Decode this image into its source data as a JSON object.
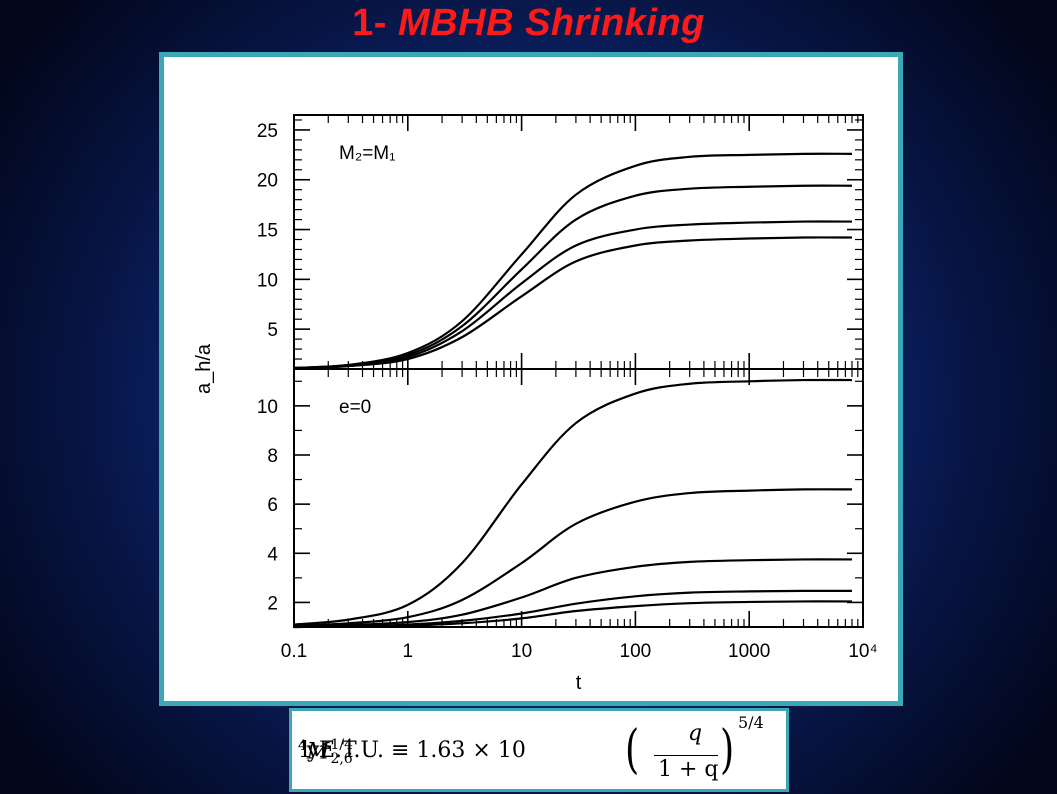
{
  "slide": {
    "title_num": "1- ",
    "title_text": "MBHB Shrinking"
  },
  "formula": {
    "lhs": "1 E.T.U. ≡ 1.63 × 10",
    "ten_exp": "4",
    "yr": " yr ",
    "mass": "M",
    "mass_sup": "1/4",
    "mass_sub": "2,6",
    "numerator": "q",
    "denominator": "1 + q",
    "outer_exponent": "5/4"
  },
  "colors": {
    "title": "#ff1a1a",
    "frame_border": "#3ea7b6",
    "curve": "#000000"
  },
  "chart_data": {
    "type": "line",
    "shared_x": {
      "label": "t",
      "scale": "log",
      "range": [
        0.1,
        10000
      ],
      "ticks": [
        0.1,
        1,
        10,
        100,
        1000,
        10000
      ],
      "tick_labels": [
        "0.1",
        "1",
        "10",
        "100",
        "1000",
        "10⁴"
      ]
    },
    "shared_ylabel": "a_h/a",
    "panels": [
      {
        "annotation": "M₂=M₁",
        "ylim": [
          1,
          26.5
        ],
        "ticks": [
          5,
          10,
          15,
          20,
          25
        ],
        "tick_labels": [
          "5",
          "10",
          "15",
          "20",
          "25"
        ],
        "series": [
          {
            "x": [
              0.1,
              0.3,
              1,
              3,
              10,
              30,
              100,
              300,
              1000,
              3000,
              8000
            ],
            "y": [
              1.1,
              1.4,
              2.6,
              5.8,
              12.5,
              18.5,
              21.4,
              22.3,
              22.5,
              22.6,
              22.6
            ]
          },
          {
            "x": [
              0.1,
              0.3,
              1,
              3,
              10,
              30,
              100,
              300,
              1000,
              3000,
              8000
            ],
            "y": [
              1.1,
              1.4,
              2.4,
              5.3,
              11.0,
              16.0,
              18.4,
              19.1,
              19.3,
              19.4,
              19.4
            ]
          },
          {
            "x": [
              0.1,
              0.3,
              1,
              3,
              10,
              30,
              100,
              300,
              1000,
              3000,
              8000
            ],
            "y": [
              1.1,
              1.3,
              2.2,
              4.8,
              9.6,
              13.4,
              15.0,
              15.5,
              15.7,
              15.8,
              15.8
            ]
          },
          {
            "x": [
              0.1,
              0.3,
              1,
              3,
              10,
              30,
              100,
              300,
              1000,
              3000,
              8000
            ],
            "y": [
              1.1,
              1.3,
              2.0,
              4.2,
              8.3,
              11.8,
              13.4,
              13.9,
              14.1,
              14.2,
              14.2
            ]
          }
        ]
      },
      {
        "annotation": "e=0",
        "ylim": [
          1,
          11.5
        ],
        "ticks": [
          2,
          4,
          6,
          8,
          10
        ],
        "tick_labels": [
          "2",
          "4",
          "6",
          "8",
          "10"
        ],
        "series": [
          {
            "x": [
              0.1,
              0.3,
              1,
              3,
              10,
              30,
              100,
              300,
              1000,
              3000,
              8000
            ],
            "y": [
              1.1,
              1.3,
              1.9,
              3.6,
              6.8,
              9.3,
              10.5,
              10.9,
              11.0,
              11.05,
              11.05
            ]
          },
          {
            "x": [
              0.1,
              0.3,
              1,
              3,
              10,
              30,
              100,
              300,
              1000,
              3000,
              8000
            ],
            "y": [
              1.05,
              1.15,
              1.4,
              2.1,
              3.6,
              5.2,
              6.1,
              6.45,
              6.55,
              6.6,
              6.6
            ]
          },
          {
            "x": [
              0.1,
              0.3,
              1,
              3,
              10,
              30,
              100,
              300,
              1000,
              3000,
              8000
            ],
            "y": [
              1.02,
              1.08,
              1.2,
              1.5,
              2.2,
              3.0,
              3.45,
              3.65,
              3.72,
              3.75,
              3.75
            ]
          },
          {
            "x": [
              0.1,
              0.3,
              1,
              3,
              10,
              30,
              100,
              300,
              1000,
              3000,
              8000
            ],
            "y": [
              1.0,
              1.03,
              1.1,
              1.25,
              1.55,
              1.95,
              2.25,
              2.4,
              2.45,
              2.47,
              2.47
            ]
          },
          {
            "x": [
              0.1,
              0.3,
              1,
              3,
              10,
              30,
              100,
              300,
              1000,
              3000,
              8000
            ],
            "y": [
              1.0,
              1.02,
              1.06,
              1.15,
              1.35,
              1.65,
              1.85,
              1.97,
              2.02,
              2.04,
              2.04
            ]
          }
        ]
      }
    ]
  }
}
